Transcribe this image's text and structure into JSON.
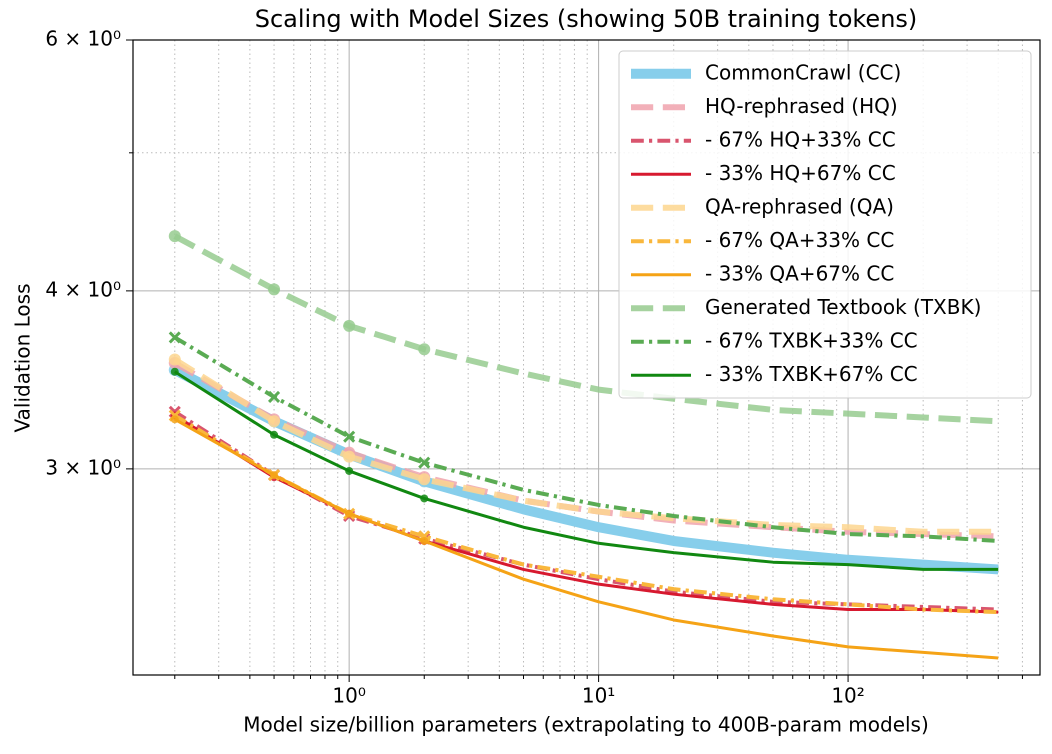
{
  "chart_data": {
    "type": "line",
    "title": "Scaling with Model Sizes (showing 50B training tokens)",
    "xlabel": "Model size/billion parameters (extrapolating to 400B-param models)",
    "ylabel": "Validation Loss",
    "xscale": "log",
    "yscale": "log",
    "grid": true,
    "legend": "upper right",
    "xlim": [
      0.136,
      588
    ],
    "ylim": [
      2.15,
      6
    ],
    "xticks": [
      {
        "value": 1,
        "label": "10⁰"
      },
      {
        "value": 10,
        "label": "10¹"
      },
      {
        "value": 100,
        "label": "10²"
      }
    ],
    "xminorticks": [
      0.2,
      0.3,
      0.4,
      0.5,
      0.6,
      0.7,
      0.8,
      0.9,
      2,
      3,
      4,
      5,
      6,
      7,
      8,
      9,
      20,
      30,
      40,
      50,
      60,
      70,
      80,
      90,
      200,
      300,
      400,
      500
    ],
    "yticks": [
      {
        "value": 3,
        "label": "3 × 10⁰"
      },
      {
        "value": 4,
        "label": "4 × 10⁰"
      },
      {
        "value": 6,
        "label": "6 × 10⁰"
      }
    ],
    "yminorticks": [
      5
    ],
    "x": [
      0.2,
      0.5,
      1,
      2,
      5,
      10,
      20,
      50,
      100,
      200,
      400
    ],
    "series": [
      {
        "name": "CommonCrawl (CC)",
        "color": "#87ceeb",
        "style": "solid",
        "width": 10,
        "marker": "o",
        "values": [
          3.52,
          3.24,
          3.07,
          2.94,
          2.81,
          2.73,
          2.67,
          2.62,
          2.59,
          2.57,
          2.55
        ]
      },
      {
        "name": "HQ-rephrased (HQ)",
        "color": "#f0a3ad",
        "style": "dashed",
        "width": 6,
        "marker": "o",
        "values": [
          3.56,
          3.25,
          3.08,
          2.96,
          2.85,
          2.8,
          2.76,
          2.73,
          2.71,
          2.7,
          2.69
        ]
      },
      {
        "name": "- 67% HQ+33% CC",
        "color": "#d9556e",
        "style": "dashdot",
        "width": 4,
        "marker": "x",
        "values": [
          3.29,
          2.97,
          2.78,
          2.68,
          2.57,
          2.51,
          2.46,
          2.42,
          2.41,
          2.4,
          2.39
        ]
      },
      {
        "name": "- 33% HQ+67% CC",
        "color": "#d7192f",
        "style": "solid",
        "width": 3,
        "marker": "o",
        "values": [
          3.27,
          2.96,
          2.79,
          2.67,
          2.55,
          2.49,
          2.45,
          2.41,
          2.39,
          2.39,
          2.38
        ]
      },
      {
        "name": "QA-rephrased (QA)",
        "color": "#fdd68f",
        "style": "dashed",
        "width": 6,
        "marker": "o",
        "values": [
          3.58,
          3.24,
          3.06,
          2.95,
          2.85,
          2.8,
          2.77,
          2.74,
          2.73,
          2.71,
          2.71
        ]
      },
      {
        "name": "- 67% QA+33% CC",
        "color": "#f9b73c",
        "style": "dashdot",
        "width": 4,
        "marker": "x",
        "values": [
          3.27,
          2.97,
          2.79,
          2.69,
          2.57,
          2.52,
          2.47,
          2.43,
          2.41,
          2.39,
          2.38
        ]
      },
      {
        "name": "- 33% QA+67% CC",
        "color": "#f5a316",
        "style": "solid",
        "width": 3,
        "marker": "o",
        "values": [
          3.25,
          2.97,
          2.79,
          2.67,
          2.51,
          2.42,
          2.35,
          2.29,
          2.25,
          2.23,
          2.21
        ]
      },
      {
        "name": "Generated Textbook (TXBK)",
        "color": "#97cb8f",
        "style": "dashed",
        "width": 6,
        "marker": "o",
        "values": [
          4.37,
          4.01,
          3.78,
          3.64,
          3.5,
          3.41,
          3.36,
          3.3,
          3.28,
          3.26,
          3.24
        ]
      },
      {
        "name": "- 67% TXBK+33% CC",
        "color": "#5aab53",
        "style": "dashdot",
        "width": 4,
        "marker": "x",
        "values": [
          3.71,
          3.37,
          3.16,
          3.03,
          2.9,
          2.83,
          2.78,
          2.73,
          2.7,
          2.69,
          2.67
        ]
      },
      {
        "name": "- 33% TXBK+67% CC",
        "color": "#118811",
        "style": "solid",
        "width": 3,
        "marker": "o",
        "values": [
          3.51,
          3.17,
          2.99,
          2.86,
          2.73,
          2.66,
          2.62,
          2.58,
          2.57,
          2.55,
          2.55
        ]
      }
    ]
  }
}
